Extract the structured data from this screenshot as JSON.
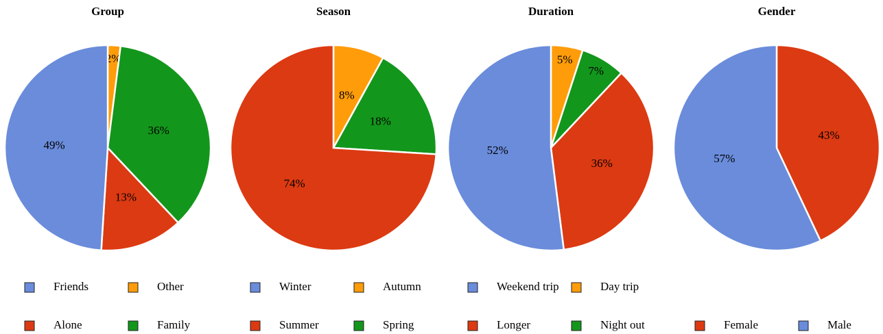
{
  "chart_data": [
    {
      "type": "pie",
      "title": "Group",
      "categories": [
        "Other",
        "Family",
        "Alone",
        "Friends"
      ],
      "values": [
        2,
        36,
        13,
        49
      ],
      "value_labels": [
        "2%",
        "36%",
        "13%",
        "49%"
      ],
      "colors": [
        "#ff9c0a",
        "#13961c",
        "#dc3a12",
        "#6a8cdb"
      ]
    },
    {
      "type": "pie",
      "title": "Season",
      "categories": [
        "Autumn",
        "Spring",
        "Summer",
        "Winter"
      ],
      "values": [
        8,
        18,
        74,
        0
      ],
      "value_labels": [
        "8%",
        "18%",
        "74%",
        null
      ],
      "colors": [
        "#ff9c0a",
        "#13961c",
        "#dc3a12",
        "#6a8cdb"
      ]
    },
    {
      "type": "pie",
      "title": "Duration",
      "categories": [
        "Day trip",
        "Night out",
        "Longer",
        "Weekend trip"
      ],
      "values": [
        5,
        7,
        36,
        52
      ],
      "value_labels": [
        "5%",
        "7%",
        "36%",
        "52%"
      ],
      "colors": [
        "#ff9c0a",
        "#13961c",
        "#dc3a12",
        "#6a8cdb"
      ]
    },
    {
      "type": "pie",
      "title": "Gender",
      "categories": [
        "Female",
        "Male"
      ],
      "values": [
        43,
        57
      ],
      "value_labels": [
        "43%",
        "57%"
      ],
      "colors": [
        "#dc3a12",
        "#6a8cdb"
      ]
    }
  ]
}
